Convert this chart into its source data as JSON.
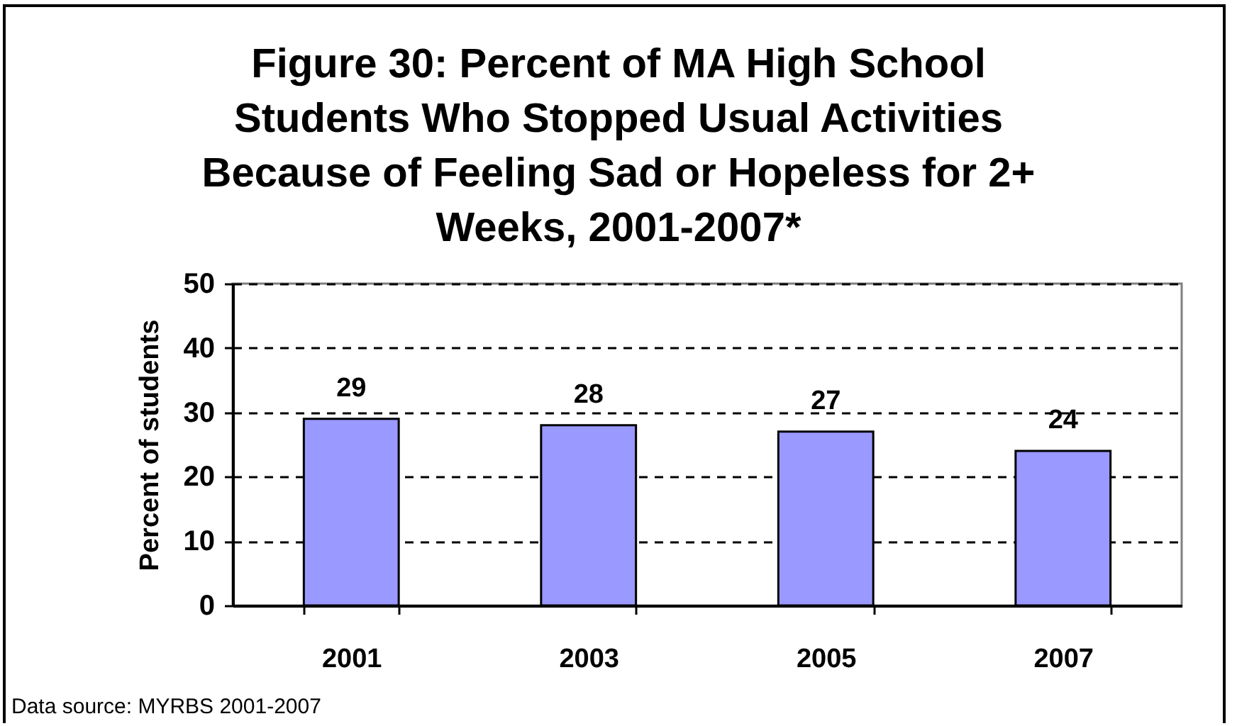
{
  "chart_data": {
    "type": "bar",
    "title": "Figure 30: Percent of MA High School Students Who Stopped Usual Activities Because of Feeling Sad or Hopeless for 2+ Weeks, 2001-2007*",
    "ylabel": "Percent of students",
    "categories": [
      "2001",
      "2003",
      "2005",
      "2007"
    ],
    "values": [
      29,
      28,
      27,
      24
    ],
    "color": "#9999ff",
    "ylim": [
      0,
      50
    ],
    "yticks": [
      0,
      10,
      20,
      30,
      40,
      50
    ],
    "grid": "y",
    "data_labels": true,
    "annotations": [
      "Data source: MYRBS 2001-2007"
    ]
  }
}
